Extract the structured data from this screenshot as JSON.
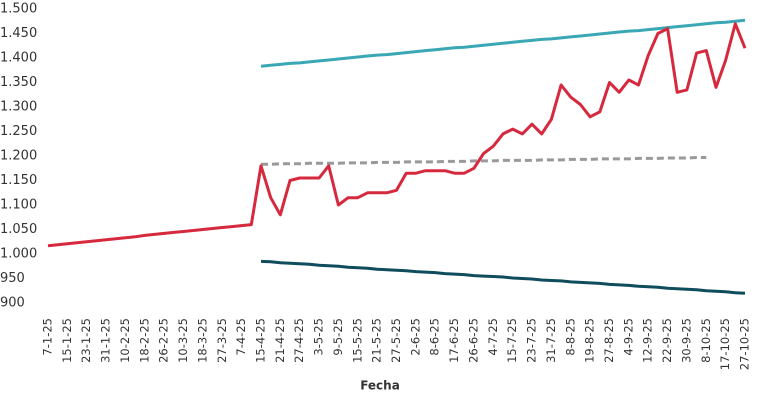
{
  "chart_data": {
    "type": "line",
    "x_label": "Fecha",
    "categories": [
      "7-1-25",
      null,
      "15-1-25",
      null,
      "23-1-25",
      null,
      "31-1-25",
      null,
      "10-2-25",
      null,
      "18-2-25",
      null,
      "26-2-25",
      null,
      "10-3-25",
      null,
      "18-3-25",
      null,
      "27-3-25",
      null,
      "7-4-25",
      null,
      "15-4-25",
      null,
      "21-4-25",
      null,
      "27-4-25",
      null,
      "3-5-25",
      null,
      "9-5-25",
      null,
      "15-5-25",
      null,
      "21-5-25",
      null,
      "27-5-25",
      null,
      "2-6-25",
      null,
      "8-6-25",
      null,
      "17-6-25",
      null,
      "26-6-25",
      null,
      "4-7-25",
      null,
      "15-7-25",
      null,
      "23-7-25",
      null,
      "31-7-25",
      null,
      "8-8-25",
      null,
      "19-8-25",
      null,
      "27-8-25",
      null,
      "4-9-25",
      null,
      "12-9-25",
      null,
      "22-9-25",
      null,
      "30-9-25",
      null,
      "8-10-25",
      null,
      "17-10-25",
      null,
      "27-10-25"
    ],
    "series": [
      {
        "color": "#3aa7b5",
        "dashed": false,
        "values": [
          null,
          null,
          null,
          null,
          null,
          null,
          null,
          null,
          null,
          null,
          null,
          null,
          null,
          null,
          null,
          null,
          null,
          null,
          null,
          null,
          null,
          null,
          1383,
          1385,
          1387,
          1389,
          1390,
          1392,
          1394,
          1396,
          1398,
          1400,
          1402,
          1404,
          1406,
          1407,
          1409,
          1411,
          1413,
          1415,
          1417,
          1419,
          1421,
          1422,
          1424,
          1426,
          1428,
          1430,
          1432,
          1434,
          1436,
          1438,
          1439,
          1441,
          1443,
          1445,
          1447,
          1449,
          1451,
          1453,
          1455,
          1456,
          1458,
          1460,
          1462,
          1464,
          1466,
          1468,
          1470,
          1472,
          1473,
          1475,
          1477
        ]
      },
      {
        "color": "#0f4c5c",
        "dashed": false,
        "values": [
          null,
          null,
          null,
          null,
          null,
          null,
          null,
          null,
          null,
          null,
          null,
          null,
          null,
          null,
          null,
          null,
          null,
          null,
          null,
          null,
          null,
          null,
          985,
          984,
          982,
          981,
          980,
          979,
          977,
          976,
          975,
          973,
          972,
          971,
          969,
          968,
          967,
          966,
          964,
          963,
          962,
          960,
          959,
          958,
          956,
          955,
          954,
          953,
          951,
          950,
          949,
          947,
          946,
          945,
          943,
          942,
          941,
          940,
          938,
          937,
          936,
          934,
          933,
          932,
          930,
          929,
          928,
          927,
          925,
          924,
          923,
          921,
          920
        ]
      },
      {
        "color": "#999999",
        "dashed": true,
        "values": [
          null,
          null,
          null,
          null,
          null,
          null,
          null,
          null,
          null,
          null,
          null,
          null,
          null,
          null,
          null,
          null,
          null,
          null,
          null,
          null,
          null,
          null,
          1183,
          1183,
          1184,
          1184,
          1184,
          1185,
          1185,
          1185,
          1185,
          1186,
          1186,
          1186,
          1187,
          1187,
          1187,
          1188,
          1188,
          1188,
          1188,
          1189,
          1189,
          1189,
          1190,
          1190,
          1190,
          1191,
          1191,
          1191,
          1191,
          1192,
          1192,
          1192,
          1193,
          1193,
          1193,
          1194,
          1194,
          1194,
          1194,
          1195,
          1195,
          1195,
          1196,
          1196,
          1196,
          1197,
          1197,
          null,
          null,
          null,
          null
        ]
      },
      {
        "color": "#d6293e",
        "dashed": false,
        "values": [
          1017,
          1019,
          1021,
          1023,
          1025,
          1027,
          1029,
          1031,
          1033,
          1035,
          1038,
          1040,
          1042,
          1044,
          1046,
          1048,
          1050,
          1052,
          1054,
          1056,
          1058,
          1060,
          1180,
          1115,
          1080,
          1150,
          1155,
          1155,
          1155,
          1180,
          1100,
          1115,
          1115,
          1125,
          1125,
          1125,
          1130,
          1165,
          1165,
          1170,
          1170,
          1170,
          1165,
          1165,
          1175,
          1205,
          1220,
          1245,
          1255,
          1245,
          1265,
          1245,
          1275,
          1345,
          1320,
          1305,
          1280,
          1290,
          1350,
          1330,
          1355,
          1345,
          1405,
          1450,
          1460,
          1330,
          1335,
          1410,
          1415,
          1340,
          1395,
          1470,
          1420
        ]
      }
    ],
    "ylim": [
      900,
      1500
    ],
    "yticks": [
      900,
      {
        "value": 950,
        "label": "950"
      },
      {
        "value": 1000,
        "label": "1.000"
      },
      {
        "value": 1050,
        "label": "1.050"
      },
      {
        "value": 1100,
        "label": "1.100"
      },
      {
        "value": 1150,
        "label": "1.150"
      },
      {
        "value": 1200,
        "label": "1.200"
      },
      {
        "value": 1250,
        "label": "1.250"
      },
      {
        "value": 1300,
        "label": "1.300"
      },
      {
        "value": 1350,
        "label": "1.350"
      },
      {
        "value": 1400,
        "label": "1.400"
      },
      {
        "value": 1450,
        "label": "1.450"
      },
      {
        "value": 1500,
        "label": "1.500"
      }
    ],
    "grid": false
  }
}
